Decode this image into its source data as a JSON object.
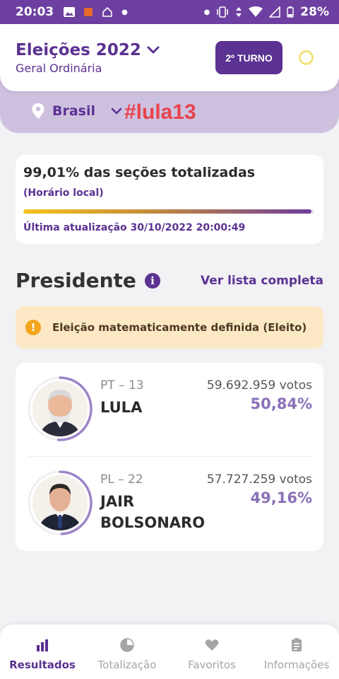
{
  "status_bar": {
    "time": "20:03",
    "battery": "28%"
  },
  "header": {
    "title": "Eleições 2022",
    "subtitle": "Geral Ordinária",
    "turno_button": "2º TURNO"
  },
  "location": {
    "label": "Brasil"
  },
  "overlay": {
    "hashtag": "#lula13"
  },
  "progress": {
    "title": "99,01% das seções totalizadas",
    "note": "(Horário local)",
    "percent": 99.01,
    "last_update": "Última atualização 30/10/2022 20:00:49"
  },
  "section": {
    "title": "Presidente",
    "link": "Ver lista completa"
  },
  "alert": {
    "text": "Eleição matematicamente definida (Eleito)"
  },
  "candidates": [
    {
      "party": "PT – 13",
      "name": "LULA",
      "votes": "59.692.959 votos",
      "percent": "50,84%",
      "share": 50.84
    },
    {
      "party": "PL – 22",
      "name": "JAIR BOLSONARO",
      "votes": "57.727.259 votos",
      "percent": "49,16%",
      "share": 49.16
    }
  ],
  "nav": [
    {
      "label": "Resultados",
      "icon": "bar-chart-icon",
      "active": true
    },
    {
      "label": "Totalização",
      "icon": "pie-chart-icon",
      "active": false
    },
    {
      "label": "Favoritos",
      "icon": "heart-icon",
      "active": false
    },
    {
      "label": "Informações",
      "icon": "clipboard-icon",
      "active": false
    }
  ],
  "colors": {
    "primary": "#5b3192",
    "statusbar": "#6d3fa0",
    "accent_red": "#e8434d",
    "alert_bg": "#fde8c6"
  }
}
